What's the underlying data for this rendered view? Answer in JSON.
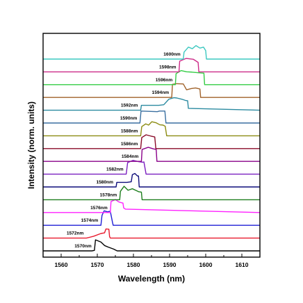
{
  "chart_data": {
    "type": "line",
    "title": "",
    "xlabel": "Wavelength (nm)",
    "ylabel": "Intensity (norm. units)",
    "xlim": [
      1555,
      1615
    ],
    "xticks": [
      1560,
      1570,
      1580,
      1590,
      1600,
      1610
    ],
    "yticks": "none",
    "grid": false,
    "stacked_offsets": true,
    "series": [
      {
        "name": "1570nm",
        "color": "#000000",
        "points": [
          [
            1555,
            0
          ],
          [
            1568.5,
            0
          ],
          [
            1569.2,
            0.03
          ],
          [
            1569.5,
            0.72
          ],
          [
            1571,
            0.58
          ],
          [
            1572,
            0.35
          ],
          [
            1573,
            0.25
          ],
          [
            1574.5,
            0.12
          ],
          [
            1575.5,
            0
          ],
          [
            1615,
            0
          ]
        ]
      },
      {
        "name": "1572nm",
        "color": "#e8192c",
        "points": [
          [
            1555,
            0
          ],
          [
            1567,
            0
          ],
          [
            1569,
            0.12
          ],
          [
            1571,
            0.3
          ],
          [
            1572,
            0.34
          ],
          [
            1572.4,
            0.6
          ],
          [
            1573.2,
            0.58
          ],
          [
            1573.4,
            0.1
          ],
          [
            1573.6,
            0
          ],
          [
            1615,
            0
          ]
        ]
      },
      {
        "name": "1574nm",
        "color": "#1f1fd6",
        "points": [
          [
            1555,
            0
          ],
          [
            1571,
            0
          ],
          [
            1571.3,
            0.65
          ],
          [
            1571.9,
            0.95
          ],
          [
            1572.8,
            0.88
          ],
          [
            1573.6,
            0.92
          ],
          [
            1574.2,
            0.2
          ],
          [
            1574.4,
            0
          ],
          [
            1615,
            0
          ]
        ]
      },
      {
        "name": "1576nm",
        "color": "#ff20ff",
        "points": [
          [
            1555,
            0
          ],
          [
            1573.6,
            0
          ],
          [
            1573.8,
            0.72
          ],
          [
            1575,
            0.85
          ],
          [
            1575.9,
            0.7
          ],
          [
            1576.4,
            0.66
          ],
          [
            1577.1,
            0.62
          ],
          [
            1577.3,
            0.3
          ],
          [
            1577.8,
            0.22
          ],
          [
            1615,
            0
          ]
        ]
      },
      {
        "name": "1578nm",
        "color": "#1c7d1c",
        "points": [
          [
            1555,
            0
          ],
          [
            1576.2,
            0
          ],
          [
            1576.4,
            0.55
          ],
          [
            1577.4,
            0.88
          ],
          [
            1578.5,
            0.62
          ],
          [
            1579.7,
            0.72
          ],
          [
            1580.8,
            0.6
          ],
          [
            1581.5,
            0.52
          ],
          [
            1582.2,
            0.5
          ],
          [
            1582.4,
            0
          ],
          [
            1615,
            0
          ]
        ]
      },
      {
        "name": "1580nm",
        "color": "#0d0d7a",
        "points": [
          [
            1555,
            0
          ],
          [
            1575.2,
            0
          ],
          [
            1575.4,
            0.3
          ],
          [
            1578.2,
            0.3
          ],
          [
            1579.4,
            0.34
          ],
          [
            1579.7,
            0.8
          ],
          [
            1580.4,
            0.88
          ],
          [
            1581.1,
            0.72
          ],
          [
            1581.4,
            0.72
          ],
          [
            1581.6,
            0
          ],
          [
            1615,
            0
          ]
        ]
      },
      {
        "name": "1582nm",
        "color": "#7a1fbf",
        "points": [
          [
            1555,
            0
          ],
          [
            1578,
            0
          ],
          [
            1578.4,
            0.76
          ],
          [
            1579.9,
            0.9
          ],
          [
            1581.4,
            0.82
          ],
          [
            1582.5,
            0.78
          ],
          [
            1582.9,
            0.8
          ],
          [
            1583.5,
            0
          ],
          [
            1615,
            0
          ]
        ]
      },
      {
        "name": "1584nm",
        "color": "#8a008a",
        "points": [
          [
            1555,
            0
          ],
          [
            1582.2,
            0
          ],
          [
            1582.4,
            0.78
          ],
          [
            1584.1,
            0.92
          ],
          [
            1585.5,
            0.82
          ],
          [
            1586.3,
            0.78
          ],
          [
            1586.5,
            0
          ],
          [
            1615,
            0
          ]
        ]
      },
      {
        "name": "1586nm",
        "color": "#8a0a28",
        "points": [
          [
            1555,
            0
          ],
          [
            1582,
            0
          ],
          [
            1582.3,
            0.72
          ],
          [
            1583.5,
            0.9
          ],
          [
            1584.8,
            0.82
          ],
          [
            1585.9,
            0.76
          ],
          [
            1586.2,
            0
          ],
          [
            1615,
            0
          ]
        ]
      },
      {
        "name": "1588nm",
        "color": "#8c8c12",
        "points": [
          [
            1555,
            0
          ],
          [
            1582,
            0
          ],
          [
            1582.3,
            0.6
          ],
          [
            1583.4,
            0.78
          ],
          [
            1584.2,
            0.7
          ],
          [
            1585.1,
            0.92
          ],
          [
            1586.3,
            0.85
          ],
          [
            1587.3,
            0.72
          ],
          [
            1588.2,
            0.7
          ],
          [
            1588.8,
            0.62
          ],
          [
            1589.2,
            0
          ],
          [
            1615,
            0
          ]
        ]
      },
      {
        "name": "1590nm",
        "color": "#3a6fa0",
        "points": [
          [
            1555,
            0
          ],
          [
            1581.8,
            0
          ],
          [
            1582.1,
            0.78
          ],
          [
            1584.8,
            0.76
          ],
          [
            1586.6,
            0.74
          ],
          [
            1587.2,
            0.78
          ],
          [
            1588.7,
            0.78
          ],
          [
            1589,
            0
          ],
          [
            1615,
            0
          ]
        ]
      },
      {
        "name": "1592nm",
        "color": "#2a8aa0",
        "points": [
          [
            1555,
            0
          ],
          [
            1582,
            0
          ],
          [
            1582.2,
            0.32
          ],
          [
            1587,
            0.32
          ],
          [
            1588.4,
            0.36
          ],
          [
            1589.8,
            0.72
          ],
          [
            1591.2,
            0.82
          ],
          [
            1592,
            0.8
          ],
          [
            1593.4,
            0.72
          ],
          [
            1594.4,
            0.64
          ],
          [
            1595,
            0.62
          ],
          [
            1595.2,
            0.12
          ],
          [
            1615,
            0
          ]
        ]
      },
      {
        "name": "1594nm",
        "color": "#a0622a",
        "points": [
          [
            1555,
            0
          ],
          [
            1590.6,
            0
          ],
          [
            1590.8,
            0.86
          ],
          [
            1592,
            0.9
          ],
          [
            1593.8,
            0.88
          ],
          [
            1594.7,
            0.5
          ],
          [
            1596,
            0.58
          ],
          [
            1597.2,
            0.62
          ],
          [
            1598.4,
            0.55
          ],
          [
            1598.6,
            0
          ],
          [
            1615,
            0
          ]
        ]
      },
      {
        "name": "1596nm",
        "color": "#33cc44",
        "points": [
          [
            1555,
            0
          ],
          [
            1591.6,
            0
          ],
          [
            1591.8,
            0.72
          ],
          [
            1593.2,
            0.92
          ],
          [
            1594.7,
            0.84
          ],
          [
            1596.2,
            0.82
          ],
          [
            1598,
            0.78
          ],
          [
            1599.5,
            0.75
          ],
          [
            1599.7,
            0
          ],
          [
            1615,
            0
          ]
        ]
      },
      {
        "name": "1598nm",
        "color": "#cc2a88",
        "points": [
          [
            1555,
            0
          ],
          [
            1592.6,
            0
          ],
          [
            1592.8,
            0.7
          ],
          [
            1594.6,
            0.88
          ],
          [
            1596.6,
            0.82
          ],
          [
            1597.9,
            0.62
          ],
          [
            1598.1,
            0
          ],
          [
            1615,
            0
          ]
        ]
      },
      {
        "name": "1600nm",
        "color": "#3cc8c0",
        "points": [
          [
            1555,
            0
          ],
          [
            1593.8,
            0
          ],
          [
            1594,
            0.45
          ],
          [
            1595.2,
            0.78
          ],
          [
            1596.3,
            0.68
          ],
          [
            1597.3,
            0.88
          ],
          [
            1598.4,
            0.72
          ],
          [
            1599.4,
            0.78
          ],
          [
            1600,
            0.55
          ],
          [
            1600.2,
            0
          ],
          [
            1615,
            0
          ]
        ]
      }
    ]
  }
}
